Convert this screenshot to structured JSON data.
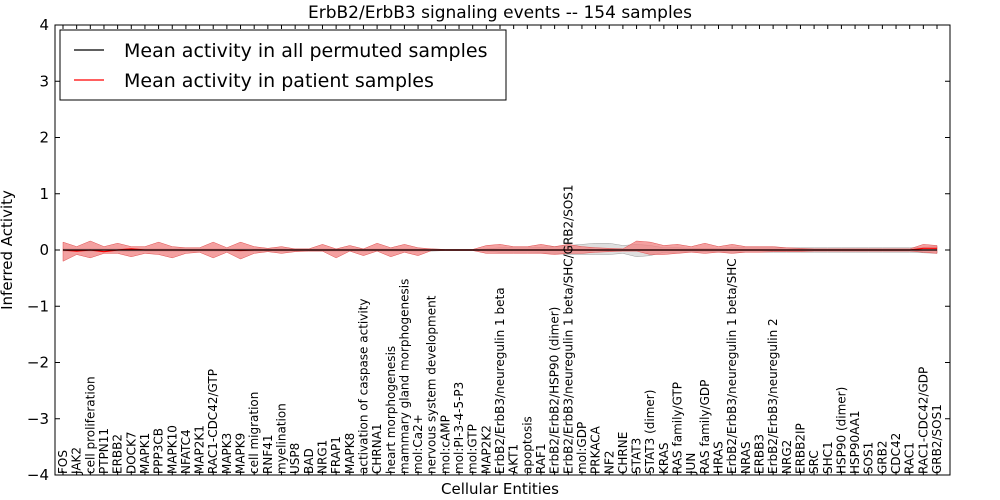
{
  "chart_data": {
    "type": "line",
    "title": "ErbB2/ErbB3 signaling events -- 154 samples",
    "xlabel": "Cellular Entities",
    "ylabel": "Inferred Activity",
    "ylim": [
      -4,
      4
    ],
    "yticks": [
      -4,
      -3,
      -2,
      -1,
      0,
      1,
      2,
      3,
      4
    ],
    "grid": false,
    "legend_position": "top-left",
    "colors": {
      "permuted": "#000000",
      "patient": "#ff0000",
      "patient_band": "#f08080",
      "permuted_band": "#c8c8c8"
    },
    "categories": [
      "FOS",
      "JAK2",
      "cell proliferation",
      "PTPN11",
      "ERBB2",
      "DOCK7",
      "MAPK1",
      "PPP3CB",
      "MAPK10",
      "NFATC4",
      "MAP2K1",
      "RAC1-CDC42/GTP",
      "MAPK3",
      "MAPK9",
      "cell migration",
      "RNF41",
      "myelination",
      "USP8",
      "BAD",
      "NRG1",
      "FRAP1",
      "MAPK8",
      "activation of caspase activity",
      "CHRNA1",
      "heart morphogenesis",
      "mammary gland morphogenesis",
      "mol:Ca2+",
      "nervous system development",
      "mol:cAMP",
      "mol:PI-3-4-5-P3",
      "mol:GTP",
      "MAP2K2",
      "ErbB2/ErbB3/neuregulin 1 beta",
      "AKT1",
      "apoptosis",
      "RAF1",
      "ErbB2/ErbB2/HSP90 (dimer)",
      "ErbB2/ErbB3/neuregulin 1 beta/SHC/GRB2/SOS1",
      "mol:GDP",
      "PRKACA",
      "NF2",
      "CHRNE",
      "STAT3",
      "STAT3 (dimer)",
      "KRAS",
      "RAS family/GTP",
      "JUN",
      "RAS family/GDP",
      "HRAS",
      "ErbB2/ErbB3/neuregulin 1 beta/SHC",
      "NRAS",
      "ERBB3",
      "ErbB2/ErbB3/neuregulin 2",
      "NRG2",
      "ERBB2IP",
      "SRC",
      "SHC1",
      "HSP90 (dimer)",
      "HSP90AA1",
      "SOS1",
      "GRB2",
      "CDC42",
      "RAC1",
      "RAC1-CDC42/GDP",
      "GRB2/SOS1"
    ],
    "series": [
      {
        "name": "Mean activity in all permuted samples",
        "values": [
          0,
          0,
          0,
          0,
          0,
          0,
          0,
          0,
          0,
          0,
          0,
          0,
          0,
          0,
          0,
          0,
          0,
          0,
          0,
          0,
          0,
          0,
          0,
          0,
          0,
          0,
          0,
          0,
          0,
          0,
          0,
          0,
          0,
          0,
          0,
          0,
          0,
          0,
          0,
          0,
          0,
          0,
          0,
          0,
          0,
          0,
          0,
          0,
          0,
          0,
          0,
          0,
          0,
          0,
          0,
          0,
          0,
          0,
          0,
          0,
          0,
          0,
          0,
          0,
          0
        ],
        "lower": [
          -0.02,
          -0.02,
          -0.02,
          -0.02,
          -0.02,
          -0.02,
          -0.02,
          -0.02,
          -0.02,
          -0.02,
          -0.02,
          -0.02,
          -0.02,
          -0.02,
          -0.02,
          -0.02,
          -0.02,
          -0.02,
          -0.02,
          -0.02,
          -0.02,
          -0.02,
          -0.02,
          -0.02,
          -0.02,
          -0.02,
          -0.02,
          -0.02,
          -0.01,
          -0.01,
          -0.01,
          -0.02,
          -0.04,
          -0.04,
          -0.04,
          -0.05,
          -0.06,
          -0.08,
          -0.08,
          -0.08,
          -0.08,
          -0.06,
          -0.12,
          -0.1,
          -0.04,
          -0.04,
          -0.03,
          -0.03,
          -0.03,
          -0.04,
          -0.04,
          -0.04,
          -0.04,
          -0.04,
          -0.04,
          -0.04,
          -0.04,
          -0.04,
          -0.04,
          -0.04,
          -0.04,
          -0.04,
          -0.04,
          -0.05,
          -0.06
        ],
        "upper": [
          0.02,
          0.02,
          0.02,
          0.02,
          0.02,
          0.02,
          0.02,
          0.02,
          0.02,
          0.02,
          0.02,
          0.02,
          0.02,
          0.02,
          0.02,
          0.02,
          0.02,
          0.02,
          0.02,
          0.02,
          0.02,
          0.02,
          0.02,
          0.02,
          0.02,
          0.02,
          0.02,
          0.02,
          0.01,
          0.01,
          0.01,
          0.02,
          0.04,
          0.04,
          0.04,
          0.05,
          0.06,
          0.08,
          0.1,
          0.12,
          0.12,
          0.08,
          0.1,
          0.08,
          0.04,
          0.04,
          0.03,
          0.03,
          0.03,
          0.04,
          0.04,
          0.04,
          0.04,
          0.04,
          0.04,
          0.04,
          0.04,
          0.04,
          0.04,
          0.04,
          0.04,
          0.04,
          0.04,
          0.05,
          0.06
        ]
      },
      {
        "name": "Mean activity in patient samples",
        "values": [
          0,
          -0.02,
          0,
          -0.03,
          0,
          0.02,
          0,
          0,
          0,
          0,
          0,
          0,
          0,
          -0.01,
          0,
          0,
          0,
          0,
          0,
          0,
          0,
          0,
          0,
          0,
          0,
          0,
          0,
          0,
          0,
          0,
          0,
          0,
          0,
          0,
          0,
          0,
          0,
          0,
          0,
          0,
          0,
          0,
          0,
          0,
          0,
          0,
          0,
          0,
          0,
          0,
          0,
          0,
          0,
          0,
          0,
          0,
          0,
          0,
          0,
          0,
          0,
          0,
          0,
          0.03,
          0.03
        ],
        "lower": [
          -0.2,
          -0.08,
          -0.14,
          -0.06,
          -0.06,
          -0.12,
          -0.06,
          -0.08,
          -0.14,
          -0.06,
          -0.04,
          -0.14,
          -0.04,
          -0.16,
          -0.06,
          -0.03,
          -0.06,
          -0.03,
          -0.02,
          -0.02,
          -0.14,
          -0.02,
          -0.1,
          -0.02,
          -0.12,
          -0.04,
          -0.1,
          -0.01,
          -0.01,
          -0.01,
          -0.01,
          -0.06,
          -0.06,
          -0.06,
          -0.06,
          -0.06,
          -0.08,
          -0.06,
          -0.06,
          -0.04,
          -0.03,
          -0.02,
          -0.02,
          -0.08,
          -0.08,
          -0.06,
          -0.04,
          -0.06,
          -0.04,
          -0.06,
          -0.04,
          -0.04,
          -0.03,
          -0.03,
          -0.03,
          -0.02,
          -0.02,
          -0.02,
          -0.02,
          -0.02,
          -0.02,
          -0.02,
          -0.02,
          -0.04,
          -0.06
        ],
        "upper": [
          0.14,
          0.06,
          0.16,
          0.06,
          0.12,
          0.06,
          0.06,
          0.14,
          0.06,
          0.04,
          0.04,
          0.14,
          0.04,
          0.14,
          0.06,
          0.03,
          0.06,
          0.02,
          0.02,
          0.1,
          0.02,
          0.08,
          0.02,
          0.12,
          0.04,
          0.1,
          0.04,
          0.02,
          0.01,
          0.01,
          0.01,
          0.08,
          0.1,
          0.06,
          0.06,
          0.1,
          0.06,
          0.1,
          0.06,
          0.04,
          0.03,
          0.02,
          0.16,
          0.14,
          0.08,
          0.1,
          0.06,
          0.12,
          0.06,
          0.1,
          0.06,
          0.06,
          0.06,
          0.04,
          0.03,
          0.02,
          0.02,
          0.02,
          0.02,
          0.02,
          0.02,
          0.02,
          0.02,
          0.1,
          0.08
        ]
      }
    ]
  }
}
